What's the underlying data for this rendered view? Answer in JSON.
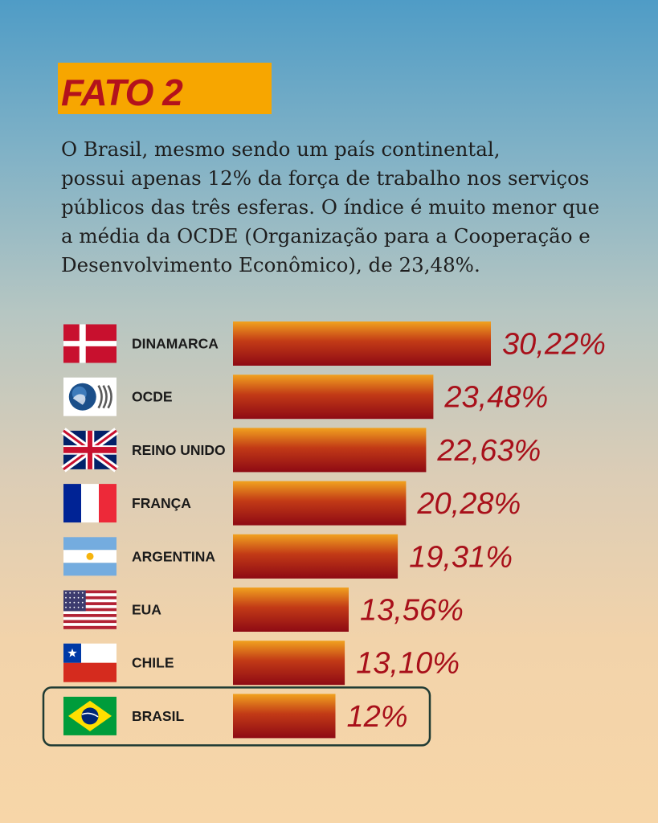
{
  "header": {
    "badge": "FATO 2",
    "lines": [
      "O Brasil, mesmo sendo um país continental,",
      "possui apenas 12% da força de trabalho nos serviços",
      "públicos das três esferas. O índice é muito menor que",
      "a média da OCDE (Organização para a Cooperação e",
      "Desenvolvimento Econômico), de 23,48%."
    ]
  },
  "colors": {
    "badge_bg": "#f7a600",
    "badge_text": "#b3121c",
    "bar_top": "#f1a21f",
    "bar_bottom": "#8e0a14",
    "value_text": "#a8101a",
    "highlight_border": "#1e3a33"
  },
  "chart_data": {
    "type": "bar",
    "orientation": "horizontal",
    "categories": [
      "DINAMARCA",
      "OCDE",
      "REINO UNIDO",
      "FRANÇA",
      "ARGENTINA",
      "EUA",
      "CHILE",
      "BRASIL"
    ],
    "values": [
      30.22,
      23.48,
      22.63,
      20.28,
      19.31,
      13.56,
      13.1,
      12
    ],
    "value_labels": [
      "30,22%",
      "23,48%",
      "22,63%",
      "20,28%",
      "19,31%",
      "13,56%",
      "13,10%",
      "12%"
    ],
    "icons": [
      "denmark-flag-icon",
      "ocde-logo-icon",
      "uk-flag-icon",
      "france-flag-icon",
      "argentina-flag-icon",
      "usa-flag-icon",
      "chile-flag-icon",
      "brazil-flag-icon"
    ],
    "highlight": "BRASIL",
    "xlim": [
      0,
      30.22
    ],
    "grid": false
  }
}
